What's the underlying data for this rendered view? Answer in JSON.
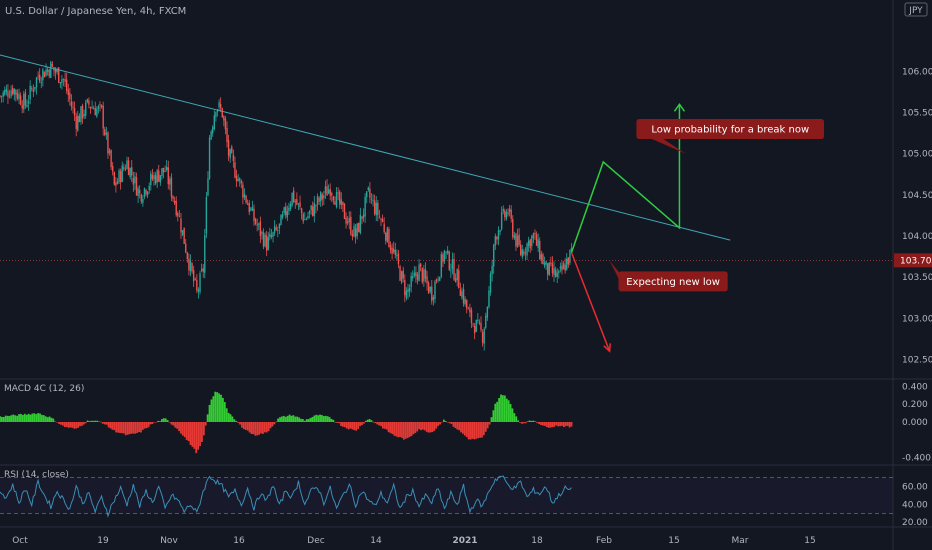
{
  "chart_data": [
    {
      "type": "candlestick",
      "title": "U.S. Dollar / Japanese Yen, 4h, FXCM",
      "currency_badge": "JPY",
      "price_axis_ticks": [
        "106.000",
        "105.500",
        "105.000",
        "104.500",
        "104.000",
        "103.500",
        "103.000",
        "102.500"
      ],
      "ylim": [
        102.3,
        106.6
      ],
      "current_price": "103.705",
      "current_price_value": 103.705,
      "x_ticks": [
        "Oct",
        "19",
        "Nov",
        "16",
        "Dec",
        "14",
        "2021",
        "18",
        "Feb",
        "15",
        "Mar",
        "15"
      ],
      "close_path": [
        [
          0,
          105.7
        ],
        [
          2,
          105.8
        ],
        [
          4,
          105.6
        ],
        [
          6,
          105.95
        ],
        [
          8,
          106.05
        ],
        [
          10,
          105.9
        ],
        [
          12,
          105.4
        ],
        [
          14,
          105.6
        ],
        [
          16,
          105.5
        ],
        [
          18,
          104.6
        ],
        [
          20,
          104.9
        ],
        [
          22,
          104.5
        ],
        [
          24,
          104.7
        ],
        [
          26,
          104.8
        ],
        [
          28,
          104.3
        ],
        [
          30,
          103.6
        ],
        [
          31,
          103.3
        ],
        [
          32,
          103.6
        ],
        [
          33,
          105.2
        ],
        [
          34,
          105.6
        ],
        [
          35,
          105.5
        ],
        [
          36,
          105.0
        ],
        [
          38,
          104.6
        ],
        [
          40,
          104.2
        ],
        [
          42,
          103.9
        ],
        [
          44,
          104.1
        ],
        [
          46,
          104.5
        ],
        [
          48,
          104.2
        ],
        [
          50,
          104.4
        ],
        [
          52,
          104.6
        ],
        [
          54,
          104.3
        ],
        [
          56,
          104.0
        ],
        [
          58,
          104.5
        ],
        [
          60,
          104.2
        ],
        [
          62,
          103.8
        ],
        [
          64,
          103.3
        ],
        [
          66,
          103.6
        ],
        [
          68,
          103.3
        ],
        [
          70,
          103.8
        ],
        [
          72,
          103.5
        ],
        [
          74,
          103.0
        ],
        [
          76,
          102.8
        ],
        [
          77,
          103.3
        ],
        [
          78,
          104.0
        ],
        [
          79,
          104.2
        ],
        [
          80,
          104.3
        ],
        [
          81,
          104.0
        ],
        [
          82,
          103.8
        ],
        [
          84,
          104.0
        ],
        [
          86,
          103.6
        ],
        [
          88,
          103.5
        ],
        [
          90,
          103.8
        ]
      ],
      "trendline": {
        "from": [
          0,
          106.2
        ],
        "to": [
          115,
          103.95
        ]
      },
      "projections": {
        "bullish": [
          [
            90,
            103.8
          ],
          [
            95,
            104.9
          ],
          [
            107,
            104.1
          ],
          [
            107,
            105.6
          ]
        ],
        "bearish": [
          [
            90,
            103.8
          ],
          [
            96,
            102.6
          ]
        ]
      },
      "annotations": [
        {
          "text": "Low probability for a break now",
          "at": [
            115,
            105.3
          ],
          "pointer": [
            108,
            105.0
          ]
        },
        {
          "text": "Expecting new low",
          "at": [
            106,
            103.45
          ],
          "pointer": [
            96,
            103.7
          ]
        }
      ]
    },
    {
      "type": "histogram",
      "title": "MACD 4C (12, 26)",
      "axis_ticks": [
        "0.400",
        "0.200",
        "0.000",
        "-0.400"
      ],
      "ylim": [
        -0.45,
        0.45
      ],
      "path": [
        [
          0,
          0.06
        ],
        [
          3,
          0.08
        ],
        [
          6,
          0.1
        ],
        [
          8,
          0.05
        ],
        [
          10,
          -0.05
        ],
        [
          12,
          -0.08
        ],
        [
          14,
          0.02
        ],
        [
          16,
          0.0
        ],
        [
          18,
          -0.1
        ],
        [
          20,
          -0.15
        ],
        [
          22,
          -0.12
        ],
        [
          24,
          -0.02
        ],
        [
          26,
          0.04
        ],
        [
          28,
          -0.08
        ],
        [
          30,
          -0.25
        ],
        [
          31,
          -0.35
        ],
        [
          32,
          -0.2
        ],
        [
          33,
          0.2
        ],
        [
          34,
          0.35
        ],
        [
          35,
          0.3
        ],
        [
          36,
          0.1
        ],
        [
          38,
          -0.05
        ],
        [
          40,
          -0.15
        ],
        [
          42,
          -0.12
        ],
        [
          44,
          0.05
        ],
        [
          46,
          0.08
        ],
        [
          48,
          0.02
        ],
        [
          50,
          0.08
        ],
        [
          52,
          0.05
        ],
        [
          54,
          -0.05
        ],
        [
          56,
          -0.1
        ],
        [
          58,
          0.04
        ],
        [
          60,
          -0.05
        ],
        [
          62,
          -0.15
        ],
        [
          64,
          -0.2
        ],
        [
          66,
          -0.08
        ],
        [
          68,
          -0.12
        ],
        [
          70,
          0.03
        ],
        [
          72,
          -0.08
        ],
        [
          74,
          -0.2
        ],
        [
          76,
          -0.18
        ],
        [
          77,
          -0.05
        ],
        [
          78,
          0.2
        ],
        [
          79,
          0.32
        ],
        [
          80,
          0.26
        ],
        [
          81,
          0.1
        ],
        [
          82,
          -0.02
        ],
        [
          84,
          0.02
        ],
        [
          86,
          -0.06
        ],
        [
          88,
          -0.04
        ],
        [
          90,
          -0.06
        ]
      ]
    },
    {
      "type": "line",
      "title": "RSI (14, close)",
      "axis_ticks": [
        "60.00",
        "40.00",
        "20.00"
      ],
      "ylim": [
        18,
        82
      ],
      "band": [
        70,
        30
      ],
      "path": [
        [
          0,
          55
        ],
        [
          1,
          48
        ],
        [
          2,
          62
        ],
        [
          3,
          42
        ],
        [
          4,
          58
        ],
        [
          5,
          40
        ],
        [
          6,
          65
        ],
        [
          7,
          50
        ],
        [
          8,
          38
        ],
        [
          9,
          55
        ],
        [
          10,
          45
        ],
        [
          11,
          35
        ],
        [
          12,
          60
        ],
        [
          13,
          42
        ],
        [
          14,
          52
        ],
        [
          15,
          32
        ],
        [
          16,
          48
        ],
        [
          17,
          30
        ],
        [
          18,
          45
        ],
        [
          19,
          58
        ],
        [
          20,
          40
        ],
        [
          21,
          62
        ],
        [
          22,
          38
        ],
        [
          23,
          55
        ],
        [
          24,
          42
        ],
        [
          25,
          60
        ],
        [
          26,
          35
        ],
        [
          27,
          50
        ],
        [
          28,
          45
        ],
        [
          29,
          32
        ],
        [
          30,
          40
        ],
        [
          31,
          30
        ],
        [
          32,
          55
        ],
        [
          33,
          72
        ],
        [
          34,
          66
        ],
        [
          35,
          60
        ],
        [
          36,
          48
        ],
        [
          37,
          55
        ],
        [
          38,
          40
        ],
        [
          39,
          58
        ],
        [
          40,
          36
        ],
        [
          41,
          52
        ],
        [
          42,
          44
        ],
        [
          43,
          62
        ],
        [
          44,
          38
        ],
        [
          45,
          56
        ],
        [
          46,
          48
        ],
        [
          47,
          65
        ],
        [
          48,
          40
        ],
        [
          49,
          55
        ],
        [
          50,
          60
        ],
        [
          51,
          42
        ],
        [
          52,
          58
        ],
        [
          53,
          35
        ],
        [
          54,
          50
        ],
        [
          55,
          62
        ],
        [
          56,
          40
        ],
        [
          57,
          55
        ],
        [
          58,
          45
        ],
        [
          59,
          38
        ],
        [
          60,
          52
        ],
        [
          61,
          42
        ],
        [
          62,
          60
        ],
        [
          63,
          35
        ],
        [
          64,
          48
        ],
        [
          65,
          55
        ],
        [
          66,
          38
        ],
        [
          67,
          50
        ],
        [
          68,
          42
        ],
        [
          69,
          58
        ],
        [
          70,
          35
        ],
        [
          71,
          52
        ],
        [
          72,
          40
        ],
        [
          73,
          60
        ],
        [
          74,
          32
        ],
        [
          75,
          45
        ],
        [
          76,
          38
        ],
        [
          77,
          55
        ],
        [
          78,
          68
        ],
        [
          79,
          72
        ],
        [
          80,
          62
        ],
        [
          81,
          58
        ],
        [
          82,
          65
        ],
        [
          83,
          48
        ],
        [
          84,
          56
        ],
        [
          85,
          52
        ],
        [
          86,
          60
        ],
        [
          87,
          42
        ],
        [
          88,
          50
        ],
        [
          89,
          58
        ],
        [
          90,
          56
        ]
      ]
    }
  ],
  "colors": {
    "background": "#131722",
    "bull": "#26a69a",
    "bear": "#ef5350",
    "trendline": "#3fa7b5",
    "bull_projection": "#2ecc40",
    "bear_projection": "#e52d2d",
    "annotation_bg": "#8b1a1a",
    "price_label_bg": "#8b1a1a",
    "macd_up": "#33cc33",
    "macd_down": "#e53935",
    "rsi_line": "#3a8fb7"
  }
}
